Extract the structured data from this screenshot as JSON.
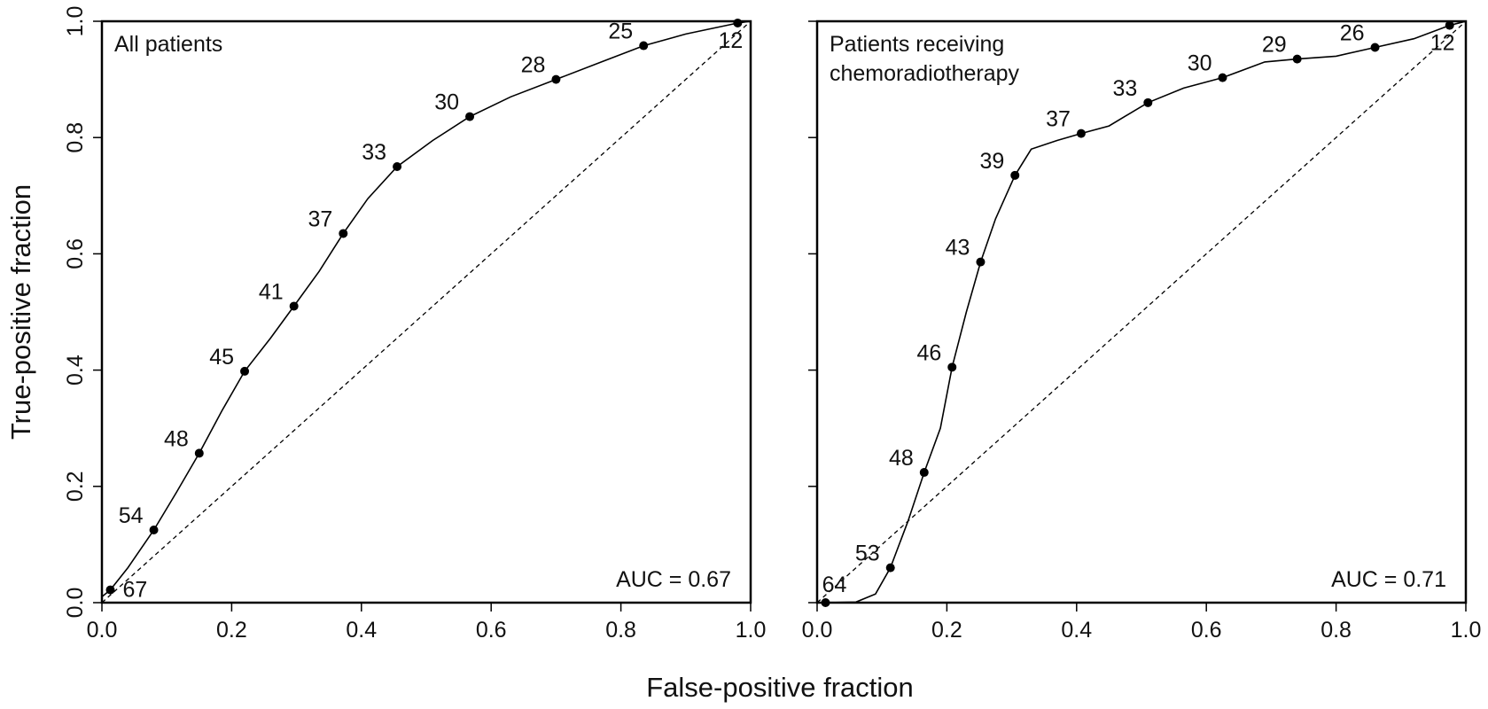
{
  "figure": {
    "ylabel": "True-positive fraction",
    "xlabel": "False-positive fraction"
  },
  "chart_data": [
    {
      "type": "line",
      "title": "All patients",
      "annotation": "AUC = 0.67",
      "xlim": [
        0,
        1
      ],
      "ylim": [
        0,
        1
      ],
      "x_ticks": [
        "0.0",
        "0.2",
        "0.4",
        "0.6",
        "0.8",
        "1.0"
      ],
      "y_ticks": [
        "0.0",
        "0.2",
        "0.4",
        "0.6",
        "0.8",
        "1.0"
      ],
      "grid": false,
      "reference_line": "diagonal, dashed",
      "curve": [
        [
          0,
          0.01
        ],
        [
          0.013,
          0.022
        ],
        [
          0.04,
          0.06
        ],
        [
          0.08,
          0.125
        ],
        [
          0.115,
          0.19
        ],
        [
          0.15,
          0.257
        ],
        [
          0.185,
          0.33
        ],
        [
          0.22,
          0.398
        ],
        [
          0.26,
          0.455
        ],
        [
          0.296,
          0.51
        ],
        [
          0.335,
          0.57
        ],
        [
          0.372,
          0.635
        ],
        [
          0.41,
          0.695
        ],
        [
          0.455,
          0.75
        ],
        [
          0.51,
          0.795
        ],
        [
          0.567,
          0.836
        ],
        [
          0.63,
          0.87
        ],
        [
          0.7,
          0.9
        ],
        [
          0.77,
          0.93
        ],
        [
          0.835,
          0.958
        ],
        [
          0.9,
          0.978
        ],
        [
          0.98,
          0.997
        ],
        [
          1.0,
          1.0
        ]
      ],
      "points": [
        {
          "label": "67",
          "x": 0.013,
          "y": 0.022,
          "pos": "right"
        },
        {
          "label": "54",
          "x": 0.08,
          "y": 0.125,
          "pos": "upleft"
        },
        {
          "label": "48",
          "x": 0.15,
          "y": 0.257,
          "pos": "upleft"
        },
        {
          "label": "45",
          "x": 0.22,
          "y": 0.398,
          "pos": "upleft"
        },
        {
          "label": "41",
          "x": 0.296,
          "y": 0.51,
          "pos": "upleft"
        },
        {
          "label": "37",
          "x": 0.372,
          "y": 0.635,
          "pos": "upleft"
        },
        {
          "label": "33",
          "x": 0.455,
          "y": 0.75,
          "pos": "upleft"
        },
        {
          "label": "30",
          "x": 0.567,
          "y": 0.836,
          "pos": "upleft"
        },
        {
          "label": "28",
          "x": 0.7,
          "y": 0.9,
          "pos": "upleft"
        },
        {
          "label": "25",
          "x": 0.835,
          "y": 0.958,
          "pos": "upleft"
        },
        {
          "label": "12",
          "x": 0.98,
          "y": 0.997,
          "pos": "below"
        }
      ]
    },
    {
      "type": "line",
      "title": "Patients receiving chemoradiotherapy",
      "title_lines": [
        "Patients receiving",
        "chemoradiotherapy"
      ],
      "annotation": "AUC = 0.71",
      "xlim": [
        0,
        1
      ],
      "ylim": [
        0,
        1
      ],
      "x_ticks": [
        "0.0",
        "0.2",
        "0.4",
        "0.6",
        "0.8",
        "1.0"
      ],
      "y_ticks": [],
      "grid": false,
      "reference_line": "diagonal, dashed",
      "curve": [
        [
          0,
          0
        ],
        [
          0.013,
          0
        ],
        [
          0.06,
          0.001
        ],
        [
          0.09,
          0.015
        ],
        [
          0.113,
          0.06
        ],
        [
          0.14,
          0.14
        ],
        [
          0.165,
          0.224
        ],
        [
          0.19,
          0.3
        ],
        [
          0.208,
          0.405
        ],
        [
          0.23,
          0.5
        ],
        [
          0.252,
          0.586
        ],
        [
          0.275,
          0.66
        ],
        [
          0.305,
          0.735
        ],
        [
          0.33,
          0.78
        ],
        [
          0.37,
          0.795
        ],
        [
          0.407,
          0.807
        ],
        [
          0.45,
          0.82
        ],
        [
          0.51,
          0.86
        ],
        [
          0.565,
          0.885
        ],
        [
          0.625,
          0.903
        ],
        [
          0.69,
          0.93
        ],
        [
          0.74,
          0.935
        ],
        [
          0.8,
          0.94
        ],
        [
          0.86,
          0.955
        ],
        [
          0.92,
          0.97
        ],
        [
          0.975,
          0.993
        ],
        [
          1.0,
          1.0
        ]
      ],
      "points": [
        {
          "label": "64",
          "x": 0.013,
          "y": 0.0,
          "pos": "above"
        },
        {
          "label": "53",
          "x": 0.113,
          "y": 0.06,
          "pos": "upleft"
        },
        {
          "label": "48",
          "x": 0.165,
          "y": 0.224,
          "pos": "upleft"
        },
        {
          "label": "46",
          "x": 0.208,
          "y": 0.405,
          "pos": "upleft"
        },
        {
          "label": "43",
          "x": 0.252,
          "y": 0.586,
          "pos": "upleft"
        },
        {
          "label": "39",
          "x": 0.305,
          "y": 0.735,
          "pos": "upleft"
        },
        {
          "label": "37",
          "x": 0.407,
          "y": 0.807,
          "pos": "upleft"
        },
        {
          "label": "33",
          "x": 0.51,
          "y": 0.86,
          "pos": "upleft"
        },
        {
          "label": "30",
          "x": 0.625,
          "y": 0.903,
          "pos": "upleft"
        },
        {
          "label": "29",
          "x": 0.74,
          "y": 0.935,
          "pos": "upleft"
        },
        {
          "label": "26",
          "x": 0.86,
          "y": 0.955,
          "pos": "upleft"
        },
        {
          "label": "12",
          "x": 0.975,
          "y": 0.993,
          "pos": "below"
        }
      ]
    }
  ]
}
